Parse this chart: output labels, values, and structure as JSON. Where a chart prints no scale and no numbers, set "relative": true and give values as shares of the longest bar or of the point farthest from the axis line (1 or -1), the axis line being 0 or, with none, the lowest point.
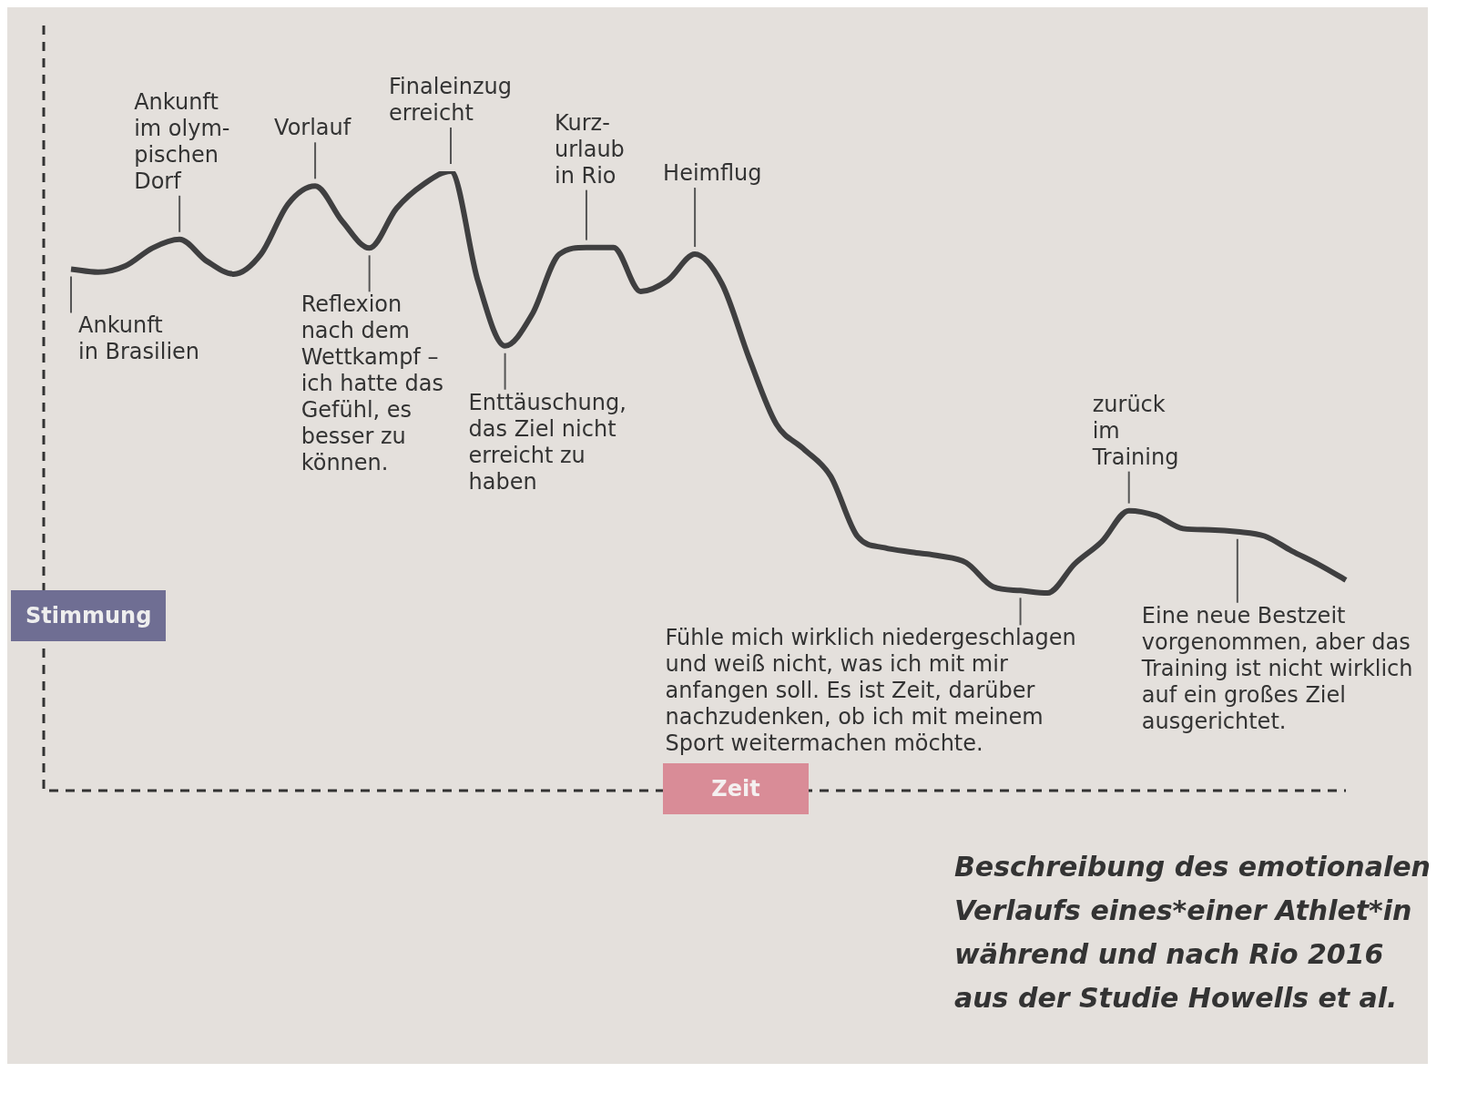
{
  "chart_data": {
    "type": "line",
    "relative": true,
    "ylabel": "Stimmung",
    "xlabel": "Zeit",
    "grid": false,
    "legend": false,
    "marker": "none",
    "line_style": "solid",
    "categories": [
      null,
      null,
      null,
      null,
      null,
      null,
      null,
      null,
      null,
      null,
      null,
      null,
      null,
      null,
      null,
      null,
      null,
      null,
      null,
      null,
      null,
      null,
      null,
      null,
      null,
      null,
      null,
      null,
      null,
      null,
      null,
      null,
      null,
      null,
      null,
      null,
      null,
      null,
      null,
      null,
      null,
      null,
      null,
      null,
      null,
      null,
      null,
      null
    ],
    "series": [
      {
        "color": "#3f3f40",
        "values": [
          0.842,
          0.837,
          0.847,
          0.876,
          0.89,
          0.855,
          0.834,
          0.866,
          0.947,
          0.976,
          0.919,
          0.876,
          0.94,
          0.979,
          1,
          0.823,
          0.718,
          0.769,
          0.866,
          0.877,
          0.877,
          0.806,
          0.824,
          0.866,
          0.818,
          0.698,
          0.592,
          0.552,
          0.508,
          0.41,
          0.392,
          0.385,
          0.379,
          0.368,
          0.329,
          0.323,
          0.319,
          0.366,
          0.402,
          0.452,
          0.444,
          0.423,
          0.421,
          0.418,
          0.411,
          0.387,
          0.365,
          0.34
        ]
      }
    ],
    "annotations": [
      "Ankunft\nin Brasilien",
      "Ankunft\nim olym-\npischen\nDorf",
      "Vorlauf",
      "Reflexion\nnach dem\nWettkampf –\nich hatte das\nGefühl, es\nbesser zu\nkönnen.",
      "Finaleinzug\nerreicht",
      "Enttäuschung,\ndas Ziel nicht\nerreicht zu\nhaben",
      "Kurz-\nurlaub\nin Rio",
      "Heimflug",
      "Fühle mich wirklich niedergeschlagen\nund weiß nicht, was ich mit mir\nanfangen soll. Es ist Zeit, darüber\nnachzudenken, ob ich mit meinem\nSport weitermachen möchte.",
      "zurück\nim\nTraining",
      "Eine neue Bestzeit\nvorgenommen, aber das\nTraining ist nicht wirklich\nauf ein großes Ziel\nausgerichtet.",
      "Beschreibung des emotionalen\nVerlaufs eines*einer Athlet*in\nwährend und nach Rio 2016\naus der Studie Howells et al."
    ]
  }
}
